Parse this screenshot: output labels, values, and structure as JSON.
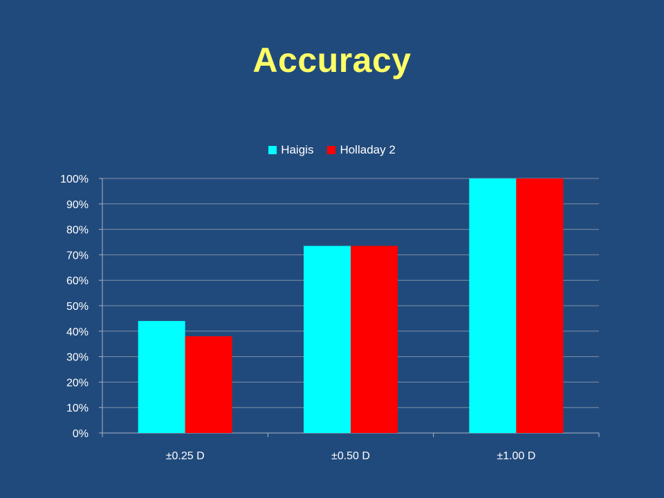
{
  "title": "Accuracy",
  "colors": {
    "background": "#214a7c",
    "title": "#ffff66",
    "grid": "#7f8fa6",
    "axis": "#aab4c4"
  },
  "chart_data": {
    "type": "bar",
    "categories": [
      "±0.25 D",
      "±0.50 D",
      "±1.00 D"
    ],
    "series": [
      {
        "name": "Haigis",
        "color": "#00ffff",
        "values": [
          44,
          73.5,
          100
        ]
      },
      {
        "name": "Holladay 2",
        "color": "#ff0000",
        "values": [
          38,
          73.5,
          100
        ]
      }
    ],
    "yticks": [
      "0%",
      "10%",
      "20%",
      "30%",
      "40%",
      "50%",
      "60%",
      "70%",
      "80%",
      "90%",
      "100%"
    ],
    "ylim": [
      0,
      100
    ],
    "legend_position": "top-center",
    "grid": true
  }
}
